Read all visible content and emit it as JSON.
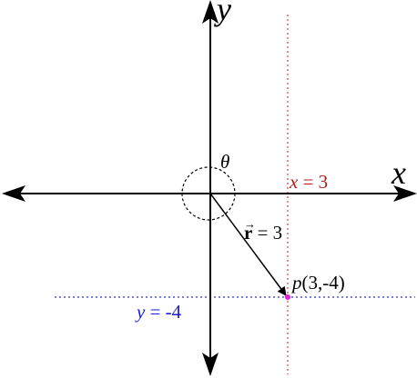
{
  "axes": {
    "x_label": "x",
    "y_label": "y"
  },
  "angle": {
    "symbol": "θ"
  },
  "lines": {
    "vertical": {
      "var": "x",
      "eq": " = 3",
      "color": "#b31b1b"
    },
    "horizontal": {
      "var": "y",
      "eq": " = -4",
      "color": "#1a1adb"
    }
  },
  "vector": {
    "symbol": "r",
    "arrow_glyph": "→",
    "eq": " = 3"
  },
  "point": {
    "name": "p",
    "coords": "(3,-4)",
    "color": "#e020e0"
  },
  "colors": {
    "axis": "#000000",
    "vertical_line": "#e04040",
    "horizontal_line": "#3030d0"
  }
}
